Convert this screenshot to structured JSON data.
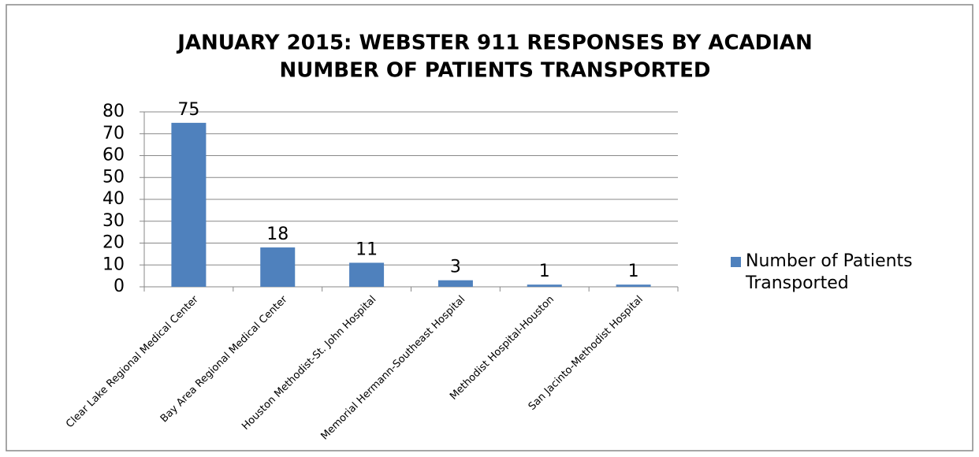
{
  "chart_data": {
    "type": "bar",
    "title": "JANUARY 2015:  WEBSTER 911 RESPONSES BY ACADIAN",
    "subtitle": "NUMBER OF PATIENTS TRANSPORTED",
    "categories": [
      "Clear Lake Regional Medical Center",
      "Bay Area Regional Medical Center",
      "Houston Methodist-St. John Hospital",
      "Memorial Hermann-Southeast Hospital",
      "Methodist Hospital-Houston",
      "San Jacinto-Methodist Hospital"
    ],
    "series": [
      {
        "name": "Number of Patients Transported",
        "color": "#4f81bd",
        "values": [
          75,
          18,
          11,
          3,
          1,
          1
        ]
      }
    ],
    "ylim": [
      0,
      80
    ],
    "yticks": [
      0,
      10,
      20,
      30,
      40,
      50,
      60,
      70,
      80
    ],
    "grid": true,
    "legend": "right"
  }
}
